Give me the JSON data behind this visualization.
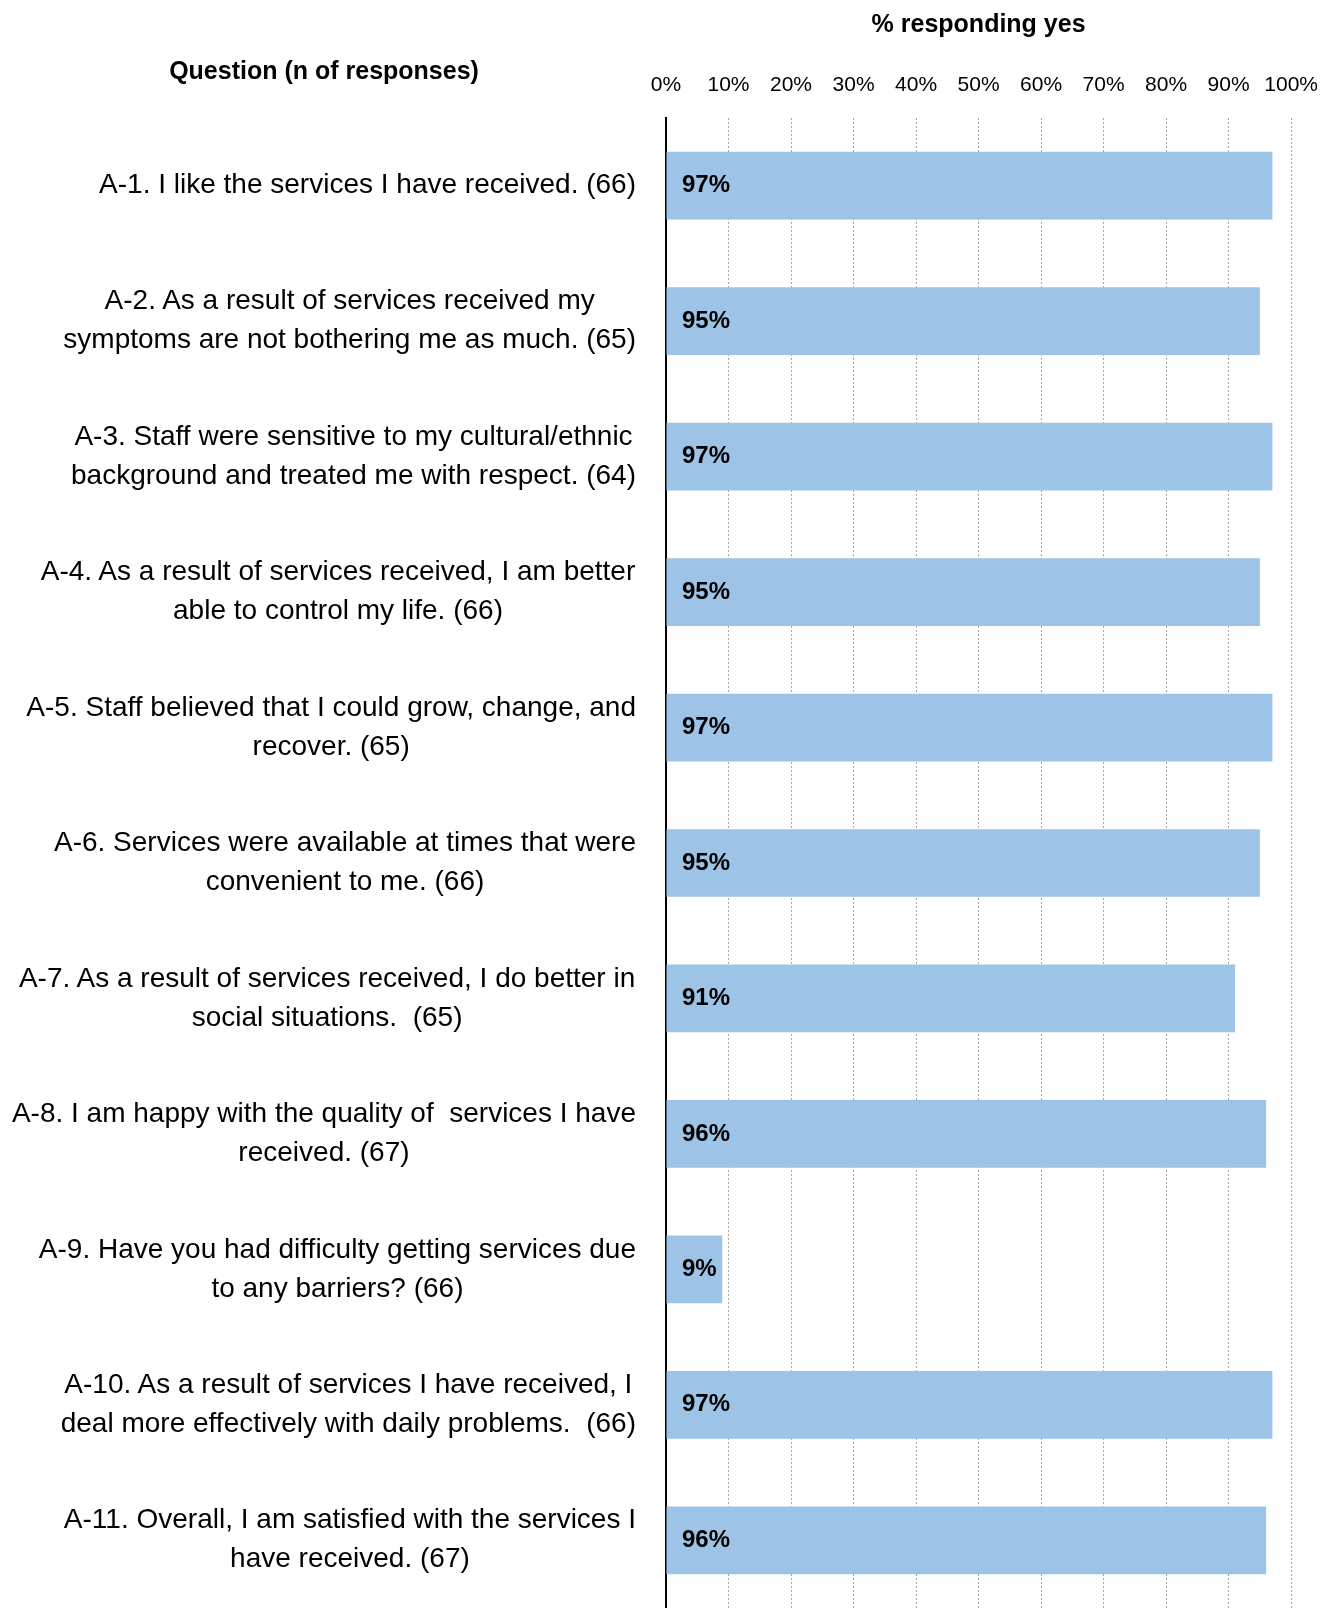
{
  "chart_data": {
    "type": "bar",
    "orientation": "horizontal",
    "xlabel": "% responding yes",
    "ylabel": "Question (n of responses)",
    "categories": [
      "A-1. I like the services I have received. (66)",
      "A-2. As a result of services received my symptoms are not bothering me as much. (65)",
      "A-3. Staff were sensitive to my cultural/ethnic background and treated me with respect. (64)",
      "A-4. As a result of services received, I am better able to control my life. (66)",
      "A-5. Staff believed that I could grow, change, and recover. (65)",
      "A-6. Services were available at times that were convenient to me. (66)",
      "A-7. As a result of services received, I do better in social situations.  (65)",
      "A-8. I am happy with the quality of  services I have received. (67)",
      "A-9. Have you had difficulty getting services due to any barriers? (66)",
      "A-10. As a result of services I have received, I deal more effectively with daily problems.  (66)",
      "A-11. Overall, I am satisfied with the services I have received. (67)"
    ],
    "values": [
      97,
      95,
      97,
      95,
      97,
      95,
      91,
      96,
      9,
      97,
      96
    ],
    "value_labels": [
      "97%",
      "95%",
      "97%",
      "95%",
      "97%",
      "95%",
      "91%",
      "96%",
      "9%",
      "97%",
      "96%"
    ],
    "color": "#9dc3e6",
    "xlim": [
      0,
      100
    ],
    "xticks": [
      {
        "value": 0,
        "label": "0%"
      },
      {
        "value": 10,
        "label": "10%"
      },
      {
        "value": 20,
        "label": "20%"
      },
      {
        "value": 30,
        "label": "30%"
      },
      {
        "value": 40,
        "label": "40%"
      },
      {
        "value": 50,
        "label": "50%"
      },
      {
        "value": 60,
        "label": "60%"
      },
      {
        "value": 70,
        "label": "70%"
      },
      {
        "value": 80,
        "label": "80%"
      },
      {
        "value": 90,
        "label": "90%"
      },
      {
        "value": 100,
        "label": "100%"
      }
    ],
    "grid": "x",
    "legend": false
  }
}
